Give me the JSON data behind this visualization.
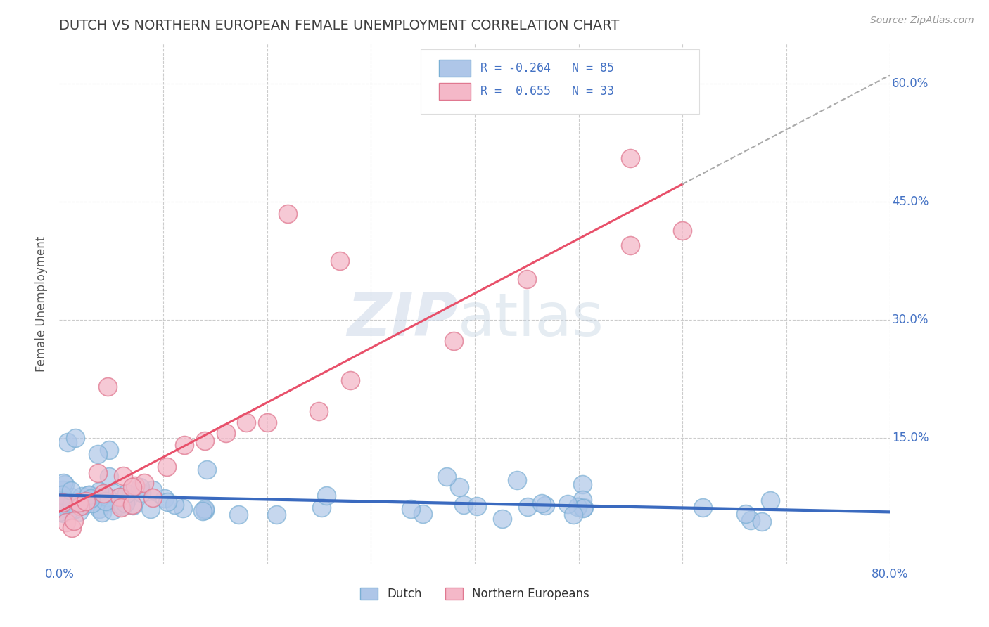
{
  "title": "DUTCH VS NORTHERN EUROPEAN FEMALE UNEMPLOYMENT CORRELATION CHART",
  "source": "Source: ZipAtlas.com",
  "ylabel": "Female Unemployment",
  "xlim": [
    0.0,
    0.8
  ],
  "ylim": [
    -0.01,
    0.65
  ],
  "xticks": [
    0.0,
    0.1,
    0.2,
    0.3,
    0.4,
    0.5,
    0.6,
    0.7,
    0.8
  ],
  "yticks": [
    0.0,
    0.15,
    0.3,
    0.45,
    0.6
  ],
  "dutch_color": "#aec6e8",
  "dutch_edge_color": "#7aafd4",
  "northern_color": "#f4b8c8",
  "northern_edge_color": "#e07890",
  "trend_dutch_color": "#3a6abf",
  "trend_northern_color": "#e8506a",
  "R_dutch": -0.264,
  "N_dutch": 85,
  "R_northern": 0.655,
  "N_northern": 33,
  "background_color": "#ffffff",
  "grid_color": "#cccccc",
  "title_color": "#404040",
  "axis_label_color": "#555555",
  "tick_color": "#4472c4",
  "legend_text_color": "#4472c4"
}
